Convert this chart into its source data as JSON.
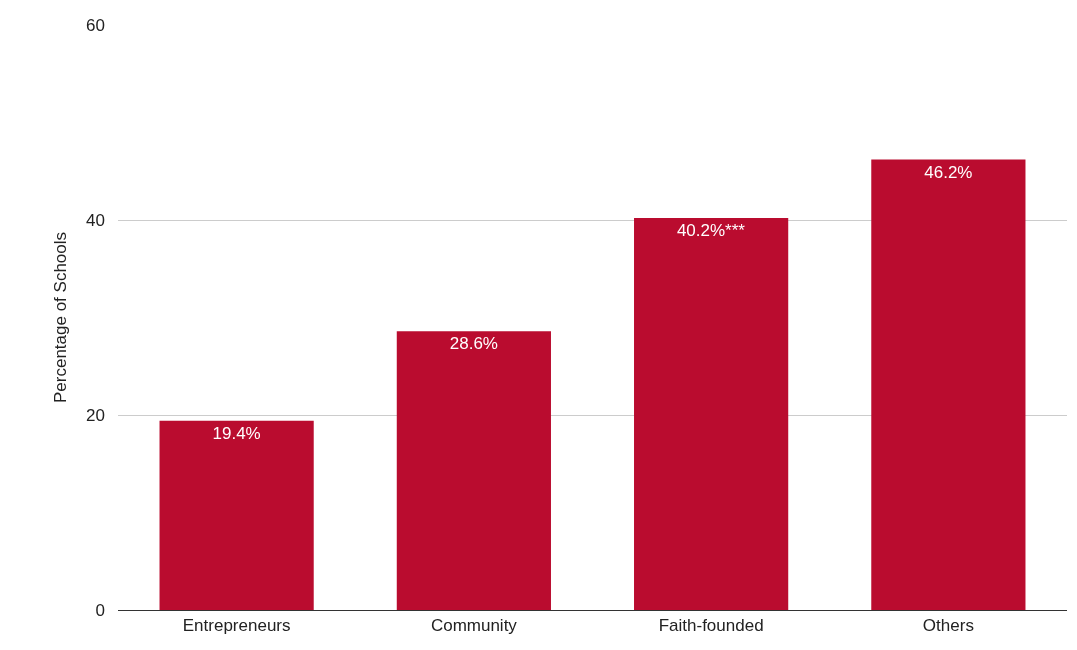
{
  "chart_data": {
    "type": "bar",
    "ylabel": "Percentage of Schools",
    "categories": [
      "Entrepreneurs",
      "Community",
      "Faith-founded",
      "Others"
    ],
    "values": [
      19.4,
      28.6,
      40.2,
      46.2
    ],
    "value_labels": [
      "19.4%",
      "28.6%",
      "40.2%***",
      "46.2%"
    ],
    "color": "#ba0c2f",
    "ylim": [
      0,
      60
    ],
    "yticks": [
      0,
      20,
      40,
      60
    ],
    "grid": "y",
    "legend": false
  }
}
